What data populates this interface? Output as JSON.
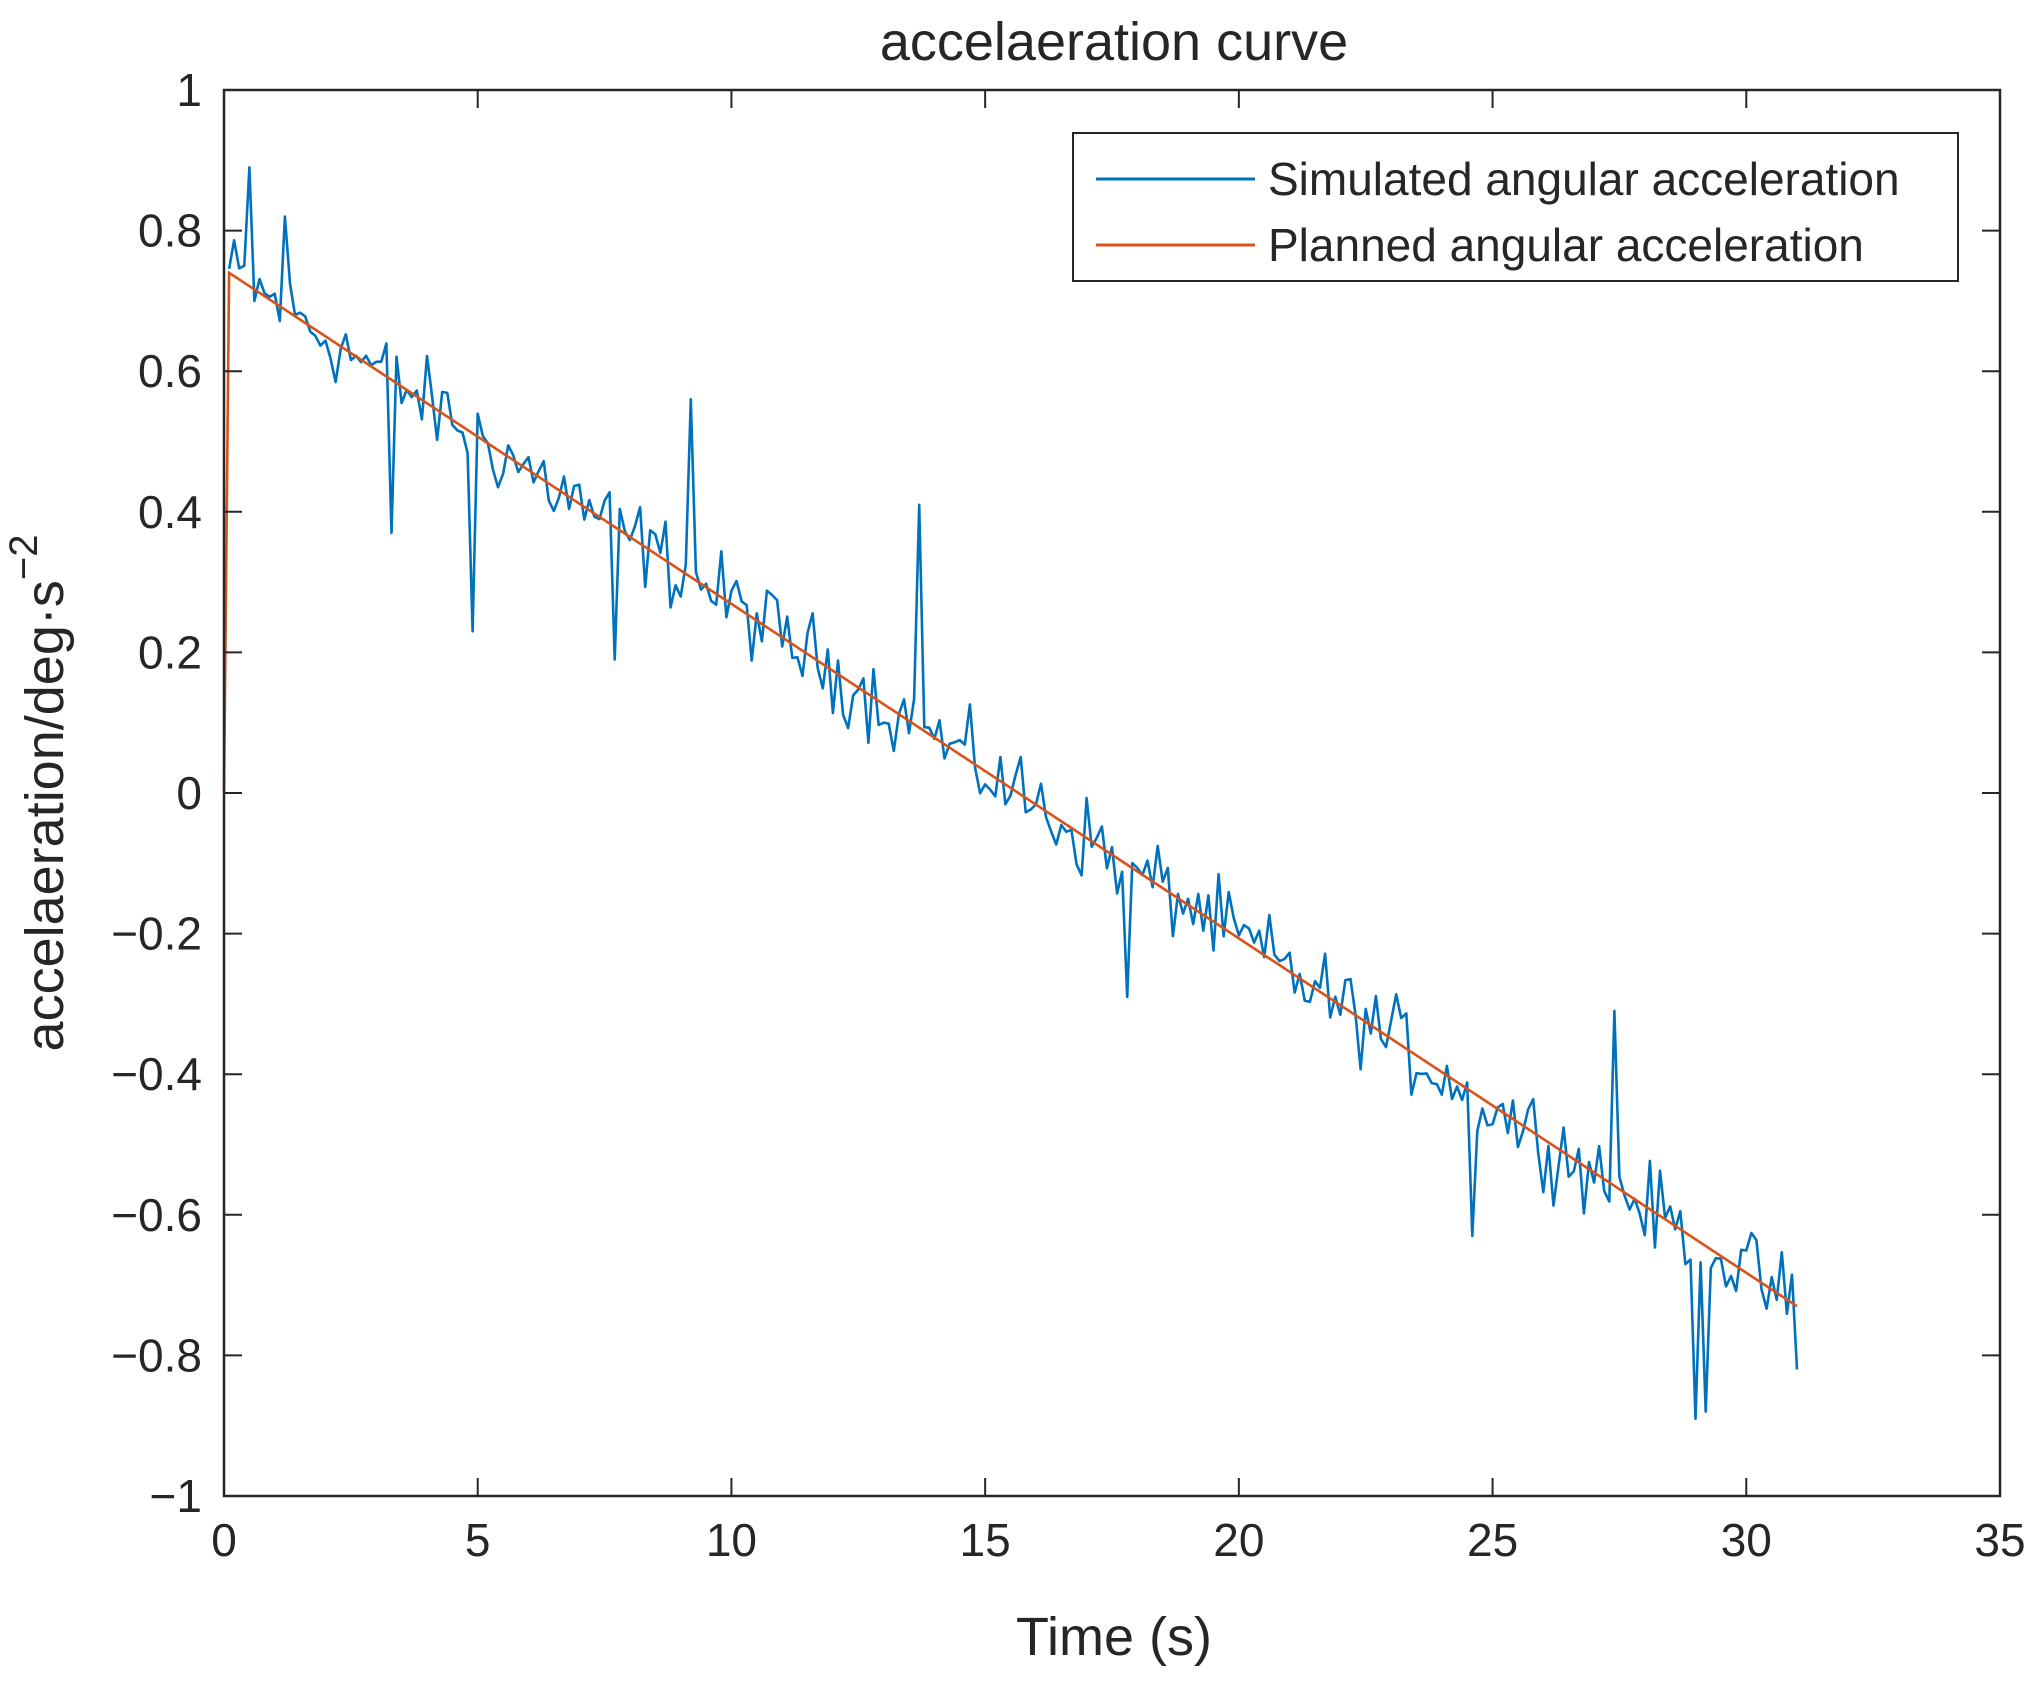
{
  "chart_data": {
    "type": "line",
    "title": "accelaeration curve",
    "xlabel": "Time (s)",
    "ylabel_prefix": "accelaeration/deg·s",
    "ylabel_exponent": "−2",
    "xlim": [
      0,
      35
    ],
    "ylim": [
      -1,
      1
    ],
    "xticks": [
      0,
      5,
      10,
      15,
      20,
      25,
      30,
      35
    ],
    "xtick_labels": [
      "0",
      "5",
      "10",
      "15",
      "20",
      "25",
      "30",
      "35"
    ],
    "yticks": [
      1,
      0.8,
      0.6,
      0.4,
      0.2,
      0,
      -0.2,
      -0.4,
      -0.6,
      -0.8,
      -1
    ],
    "ytick_labels": [
      "1",
      "0.8",
      "0.6",
      "0.4",
      "0.2",
      "0",
      "−0.2",
      "−0.4",
      "−0.6",
      "−0.8",
      "−1"
    ],
    "grid": false,
    "legend_position": "top-right",
    "series": [
      {
        "name": "Simulated angular acceleration",
        "color": "#0072BD",
        "noise_amplitude": 0.09,
        "extreme_points": {
          "x": [
            0.5,
            1.2,
            3.3,
            4.9,
            7.7,
            9.2,
            13.7,
            17.8,
            24.6,
            27.4,
            29.0,
            29.2,
            31.0
          ],
          "y": [
            0.89,
            0.82,
            0.37,
            0.23,
            0.19,
            0.56,
            0.41,
            -0.29,
            -0.63,
            -0.31,
            -0.89,
            -0.88,
            -0.82
          ]
        }
      },
      {
        "name": "Planned angular acceleration",
        "color": "#D95319",
        "x": [
          0,
          0.1,
          31
        ],
        "y": [
          0,
          0.74,
          -0.73
        ]
      }
    ]
  }
}
